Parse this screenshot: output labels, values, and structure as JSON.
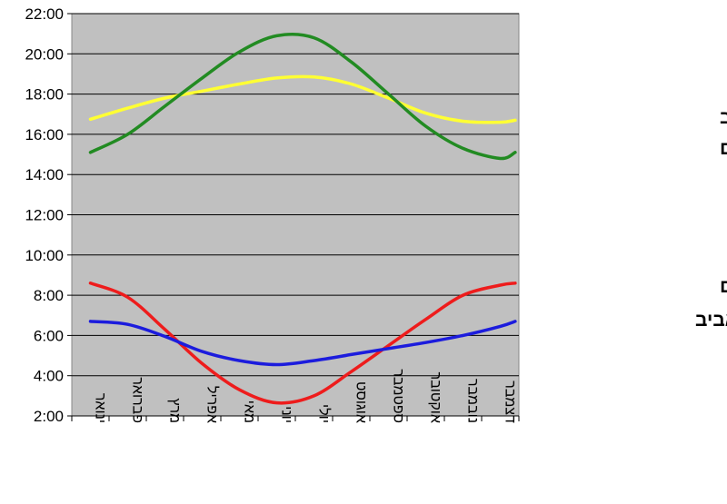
{
  "chart_data": {
    "type": "line",
    "title": "",
    "xlabel": "",
    "ylabel": "",
    "ylim": [
      2,
      22
    ],
    "y_ticks": [
      "2:00",
      "4:00",
      "6:00",
      "8:00",
      "10:00",
      "12:00",
      "14:00",
      "16:00",
      "18:00",
      "20:00",
      "22:00"
    ],
    "categories": [
      "ינואר",
      "פברואר",
      "מרץ",
      "אפריל",
      "מאי",
      "יוני",
      "יולי",
      "אוגוסט",
      "ספטמבר",
      "אוקטובר",
      "נובמבר",
      "דצמבר"
    ],
    "grid": true,
    "background": "#c0c0c0",
    "series": [
      {
        "name": "שקיעה בתל-אביב",
        "color": "#ffff33",
        "x": [
          0,
          1,
          2,
          3,
          4,
          5,
          6,
          7,
          8,
          9,
          10,
          11,
          11.4
        ],
        "values": [
          16.75,
          17.3,
          17.8,
          18.15,
          18.5,
          18.8,
          18.85,
          18.5,
          17.8,
          17.05,
          16.65,
          16.6,
          16.7
        ]
      },
      {
        "name": "שקיעה בשטוקהולם",
        "color": "#228b22",
        "x": [
          0,
          1,
          2,
          3,
          4,
          5,
          6,
          7,
          8,
          9,
          10,
          11,
          11.4
        ],
        "values": [
          15.1,
          16.0,
          17.4,
          18.8,
          20.1,
          20.9,
          20.8,
          19.6,
          18.0,
          16.4,
          15.3,
          14.8,
          15.1
        ]
      },
      {
        "name": "זריחה בשטוקהולם",
        "color": "#ee1c1c",
        "x": [
          0,
          1,
          2,
          3,
          4,
          5,
          6,
          7,
          8,
          9,
          10,
          11,
          11.4
        ],
        "values": [
          8.6,
          7.9,
          6.3,
          4.6,
          3.3,
          2.65,
          3.0,
          4.2,
          5.5,
          6.8,
          8.0,
          8.5,
          8.6
        ]
      },
      {
        "name": "זריחה בתל-אביב",
        "color": "#1c1cdd",
        "x": [
          0,
          1,
          2,
          3,
          4,
          5,
          6,
          7,
          8,
          9,
          10,
          11,
          11.4
        ],
        "values": [
          6.7,
          6.55,
          5.95,
          5.2,
          4.75,
          4.55,
          4.75,
          5.05,
          5.35,
          5.65,
          6.0,
          6.45,
          6.7
        ]
      }
    ]
  }
}
